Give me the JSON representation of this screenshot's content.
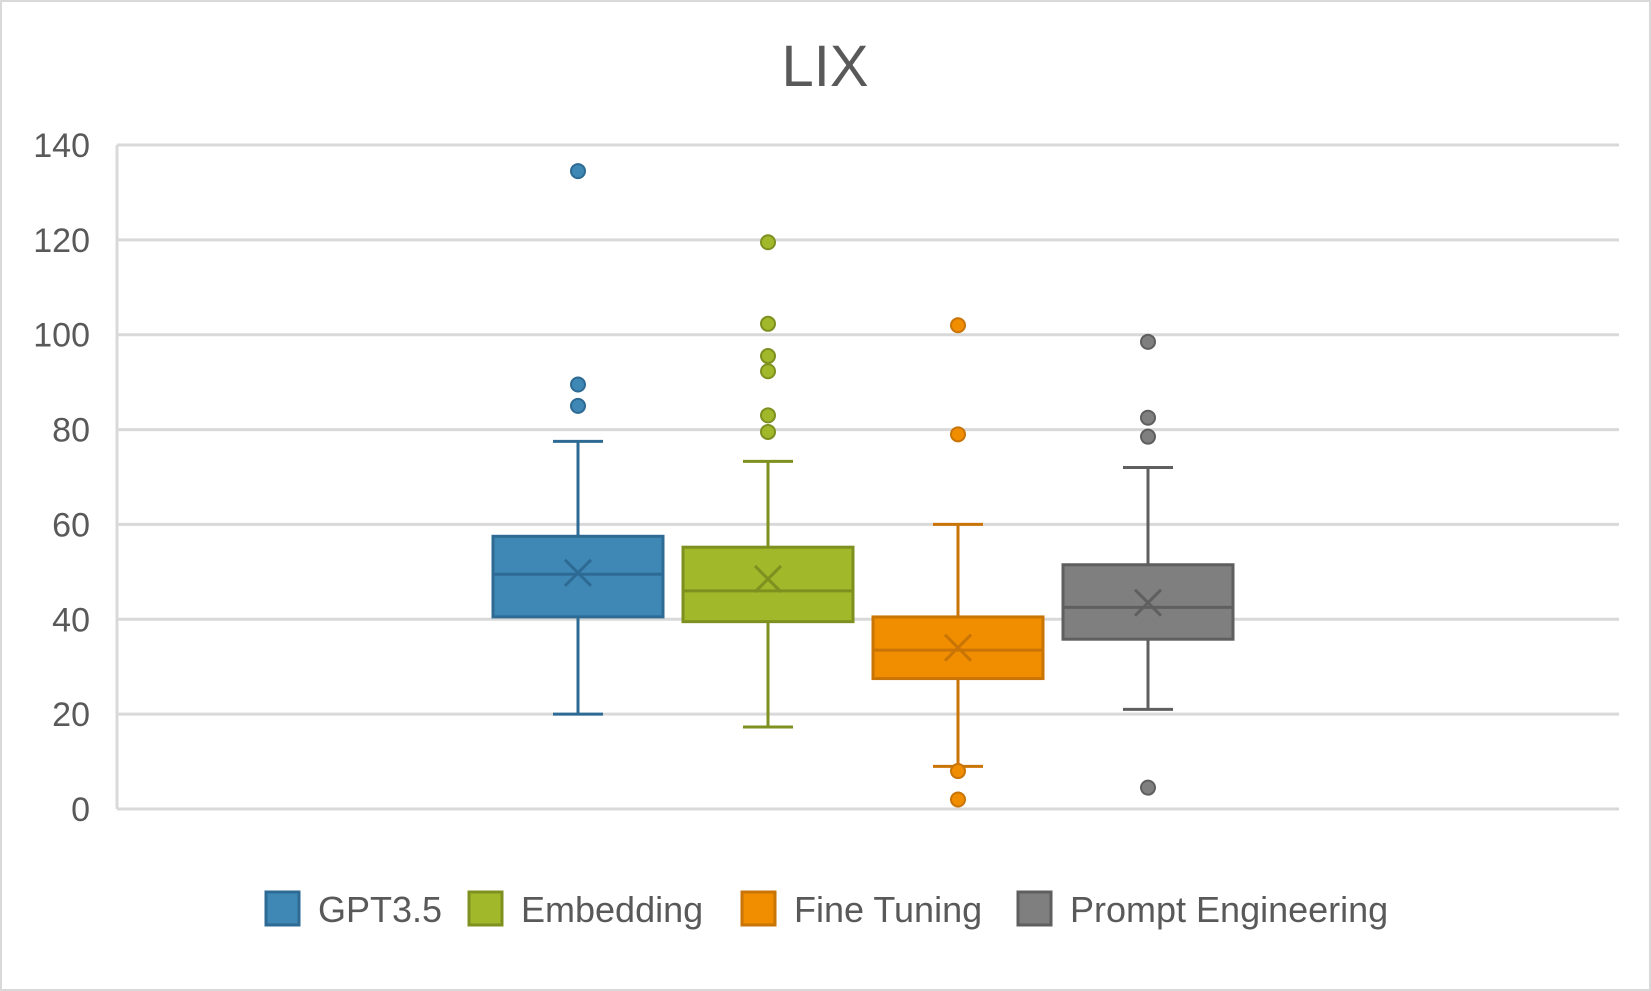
{
  "chart_data": {
    "type": "box",
    "title": "LIX",
    "xlabel": "",
    "ylabel": "",
    "ylim": [
      0,
      140
    ],
    "yticks": [
      0,
      20,
      40,
      60,
      80,
      100,
      120,
      140
    ],
    "grid": true,
    "legend_position": "bottom",
    "series": [
      {
        "name": "GPT3.5",
        "color": "#3f87b5",
        "stroke": "#2e6b94",
        "whisker_low": 20,
        "q1": 40.5,
        "median": 49.5,
        "mean": 49.8,
        "q3": 57.5,
        "whisker_high": 77.5,
        "outliers": [
          134.5,
          89.5,
          85
        ]
      },
      {
        "name": "Embedding",
        "color": "#a2b82b",
        "stroke": "#7e901f",
        "whisker_low": 17.3,
        "q1": 39.5,
        "median": 46,
        "mean": 48.5,
        "q3": 55.2,
        "whisker_high": 73.3,
        "outliers": [
          119.5,
          102.3,
          95.5,
          92.3,
          83,
          79.5
        ]
      },
      {
        "name": "Fine Tuning",
        "color": "#f18e00",
        "stroke": "#c97406",
        "whisker_low": 9,
        "q1": 27.5,
        "median": 33.5,
        "mean": 34,
        "q3": 40.5,
        "whisker_high": 60,
        "outliers": [
          102,
          79,
          8,
          2
        ]
      },
      {
        "name": "Prompt Engineering",
        "color": "#7f7f7f",
        "stroke": "#5f5f5f",
        "whisker_low": 21,
        "q1": 35.8,
        "median": 42.5,
        "mean": 43.5,
        "q3": 51.5,
        "whisker_high": 72,
        "outliers": [
          98.5,
          82.5,
          78.5,
          4.5
        ]
      }
    ]
  }
}
